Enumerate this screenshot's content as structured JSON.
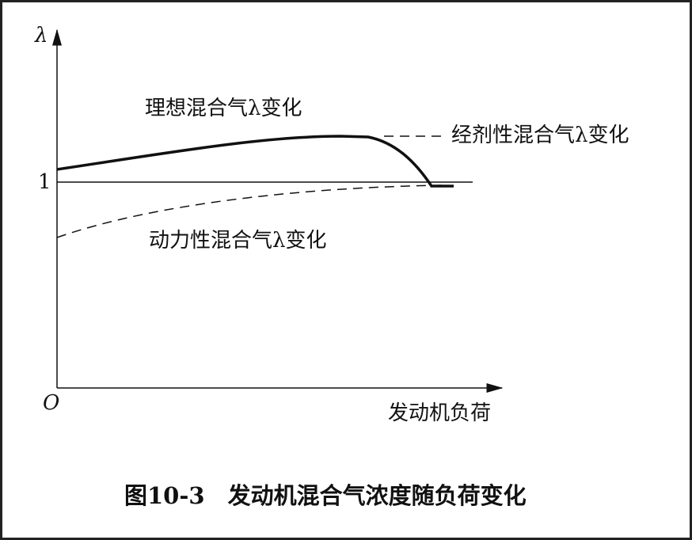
{
  "axis": {
    "y_label": "λ",
    "y_mark": "1",
    "origin": "O",
    "x_label": "发动机负荷"
  },
  "curves": {
    "ideal": "理想混合气λ变化",
    "economy": "经剂性混合气λ变化",
    "power": "动力性混合气λ变化"
  },
  "caption": "图10-3　发动机混合气浓度随负荷变化"
}
